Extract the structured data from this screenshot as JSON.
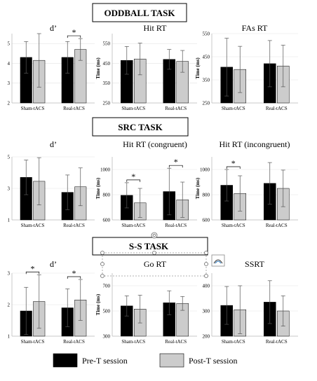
{
  "sections": [
    {
      "title": "ODDBALL TASK"
    },
    {
      "title": "SRC TASK"
    },
    {
      "title": "S-S TASK"
    }
  ],
  "legend": [
    {
      "label": "Pre-T session",
      "color": "#000000"
    },
    {
      "label": "Post-T session",
      "color": "#cccccc"
    }
  ],
  "colors": {
    "pre": "#000000",
    "post": "#cccccc",
    "axis": "#bbbbbb"
  },
  "chart_data": [
    {
      "type": "bar",
      "title": "d’",
      "ylabel": "",
      "categories": [
        "Sham-tACS",
        "Real-tACS"
      ],
      "ylim": [
        2,
        5.5
      ],
      "yticks": [
        2,
        3,
        4,
        5
      ],
      "series": [
        {
          "name": "Pre-T session",
          "values": [
            4.3,
            4.3
          ],
          "err": [
            0.8,
            0.8
          ]
        },
        {
          "name": "Post-T session",
          "values": [
            4.15,
            4.7
          ],
          "err": [
            1.35,
            0.55
          ]
        }
      ],
      "sig": [
        {
          "category": 1,
          "label": "*"
        }
      ]
    },
    {
      "type": "bar",
      "title": "Hit RT",
      "ylabel": "Time (ms)",
      "categories": [
        "Sham-tACS",
        "Real-tACS"
      ],
      "ylim": [
        250,
        600
      ],
      "yticks": [
        250,
        350,
        450,
        550
      ],
      "series": [
        {
          "name": "Pre-T session",
          "values": [
            465,
            470
          ],
          "err": [
            70,
            50
          ]
        },
        {
          "name": "Post-T session",
          "values": [
            472,
            460
          ],
          "err": [
            80,
            55
          ]
        }
      ],
      "sig": []
    },
    {
      "type": "bar",
      "title": "FAs RT",
      "ylabel": "Time (ms)",
      "categories": [
        "Sham-tACS",
        "Real-tACS"
      ],
      "ylim": [
        250,
        550
      ],
      "yticks": [
        250,
        350,
        450,
        550
      ],
      "series": [
        {
          "name": "Pre-T session",
          "values": [
            405,
            420
          ],
          "err": [
            125,
            100
          ]
        },
        {
          "name": "Post-T session",
          "values": [
            395,
            410
          ],
          "err": [
            100,
            90
          ]
        }
      ],
      "sig": []
    },
    {
      "type": "bar",
      "title": "d’",
      "ylabel": "",
      "categories": [
        "Sham-tACS",
        "Real-tACS"
      ],
      "ylim": [
        1,
        5
      ],
      "yticks": [
        1,
        3,
        5
      ],
      "series": [
        {
          "name": "Pre-T session",
          "values": [
            3.7,
            2.75
          ],
          "err": [
            1.1,
            1.1
          ]
        },
        {
          "name": "Post-T session",
          "values": [
            3.45,
            3.1
          ],
          "err": [
            1.5,
            1.2
          ]
        }
      ],
      "sig": []
    },
    {
      "type": "bar",
      "title": "Hit RT (congruent)",
      "ylabel": "Time (ms)",
      "categories": [
        "Sham-tACS",
        "Real-tACS"
      ],
      "ylim": [
        600,
        1100
      ],
      "yticks": [
        600,
        800,
        1000
      ],
      "series": [
        {
          "name": "Pre-T session",
          "values": [
            795,
            825
          ],
          "err": [
            100,
            185
          ]
        },
        {
          "name": "Post-T session",
          "values": [
            735,
            760
          ],
          "err": [
            115,
            140
          ]
        }
      ],
      "sig": [
        {
          "category": 0,
          "label": "*"
        },
        {
          "category": 1,
          "label": "*"
        }
      ]
    },
    {
      "type": "bar",
      "title": "Hit RT (incongruent)",
      "ylabel": "Time (ms)",
      "categories": [
        "Sham-tACS",
        "Real-tACS"
      ],
      "ylim": [
        600,
        1100
      ],
      "yticks": [
        600,
        800,
        1000
      ],
      "series": [
        {
          "name": "Pre-T session",
          "values": [
            875,
            890
          ],
          "err": [
            125,
            165
          ]
        },
        {
          "name": "Post-T session",
          "values": [
            810,
            850
          ],
          "err": [
            140,
            145
          ]
        }
      ],
      "sig": [
        {
          "category": 0,
          "label": "*"
        }
      ]
    },
    {
      "type": "bar",
      "title": "d’",
      "ylabel": "",
      "categories": [
        "Sham-tACS",
        "Real-tACS"
      ],
      "ylim": [
        1,
        3
      ],
      "yticks": [
        1,
        2,
        3
      ],
      "series": [
        {
          "name": "Pre-T session",
          "values": [
            1.8,
            1.9
          ],
          "err": [
            0.75,
            0.6
          ]
        },
        {
          "name": "Post-T session",
          "values": [
            2.1,
            2.15
          ],
          "err": [
            0.85,
            0.65
          ]
        }
      ],
      "sig": [
        {
          "category": 0,
          "label": "*"
        },
        {
          "category": 1,
          "label": "*"
        }
      ]
    },
    {
      "type": "bar",
      "title": "Go RT",
      "ylabel": "Time (ms)",
      "categories": [
        "Sham-tACS",
        "Real-tACS"
      ],
      "ylim": [
        300,
        800
      ],
      "yticks": [
        300,
        500,
        700
      ],
      "series": [
        {
          "name": "Pre-T session",
          "values": [
            540,
            565
          ],
          "err": [
            80,
            95
          ]
        },
        {
          "name": "Post-T session",
          "values": [
            515,
            560
          ],
          "err": [
            110,
            55
          ]
        }
      ],
      "sig": []
    },
    {
      "type": "bar",
      "title": "SSRT",
      "ylabel": "",
      "categories": [
        "Sham-tACS",
        "Real-tACS"
      ],
      "ylim": [
        200,
        450
      ],
      "yticks": [
        200,
        300,
        400
      ],
      "series": [
        {
          "name": "Pre-T session",
          "values": [
            322,
            335
          ],
          "err": [
            75,
            85
          ]
        },
        {
          "name": "Post-T session",
          "values": [
            305,
            300
          ],
          "err": [
            95,
            60
          ]
        }
      ],
      "sig": []
    }
  ]
}
